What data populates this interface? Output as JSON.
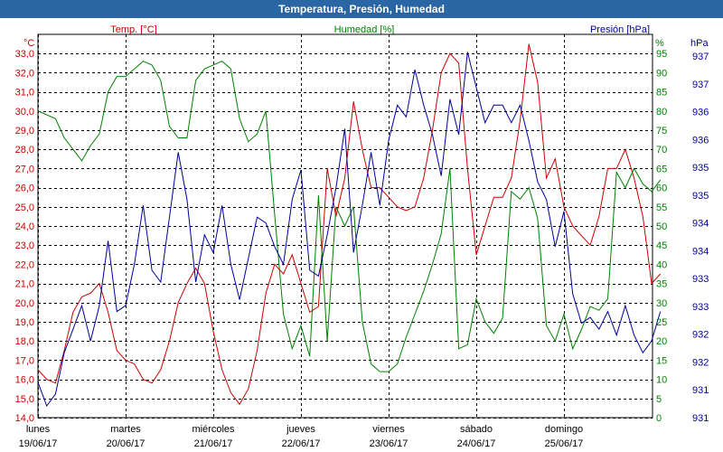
{
  "window": {
    "title": "Temperatura, Presión, Humedad"
  },
  "colors": {
    "temp": "#cc0000",
    "hum": "#008000",
    "pres": "#000099",
    "title_bg": "#2a66a4"
  },
  "chart_data": {
    "type": "line",
    "title": "Temperatura, Presión, Humedad",
    "axes": {
      "temp": {
        "label": "Temp. [°C]",
        "unit": "°C",
        "ylim": [
          14.0,
          34.0
        ],
        "ticks": [
          "14,0",
          "15,0",
          "16,0",
          "17,0",
          "18,0",
          "19,0",
          "20,0",
          "21,0",
          "22,0",
          "23,0",
          "24,0",
          "25,0",
          "26,0",
          "27,0",
          "28,0",
          "29,0",
          "30,0",
          "31,0",
          "32,0",
          "33,0"
        ]
      },
      "hum": {
        "label": "Humedad [%]",
        "unit": "%",
        "ylim": [
          0,
          100
        ],
        "ticks": [
          "0",
          "5",
          "10",
          "15",
          "20",
          "25",
          "30",
          "35",
          "40",
          "45",
          "50",
          "55",
          "60",
          "65",
          "70",
          "75",
          "80",
          "85",
          "90",
          "95"
        ]
      },
      "pres": {
        "label": "Presión [hPa]",
        "unit": "hPa",
        "ticks": [
          "931",
          "931",
          "932",
          "932",
          "933",
          "933",
          "934",
          "934",
          "935",
          "935",
          "936",
          "936",
          "937",
          "937"
        ]
      }
    },
    "x": {
      "days": [
        {
          "name": "lunes",
          "date": "19/06/17"
        },
        {
          "name": "martes",
          "date": "20/06/17"
        },
        {
          "name": "miércoles",
          "date": "21/06/17"
        },
        {
          "name": "jueves",
          "date": "22/06/17"
        },
        {
          "name": "viernes",
          "date": "23/06/17"
        },
        {
          "name": "sábado",
          "date": "24/06/17"
        },
        {
          "name": "domingo",
          "date": "25/06/17"
        }
      ]
    },
    "grid": true,
    "series": [
      {
        "name": "Temp. [°C]",
        "axis": "temp",
        "color": "#cc0000",
        "x": [
          0,
          0.1,
          0.2,
          0.3,
          0.4,
          0.5,
          0.6,
          0.7,
          0.8,
          0.9,
          1.0,
          1.1,
          1.2,
          1.3,
          1.4,
          1.5,
          1.6,
          1.7,
          1.8,
          1.9,
          2.0,
          2.1,
          2.2,
          2.3,
          2.4,
          2.5,
          2.6,
          2.7,
          2.8,
          2.9,
          3.0,
          3.1,
          3.2,
          3.3,
          3.4,
          3.5,
          3.6,
          3.7,
          3.8,
          3.9,
          4.0,
          4.1,
          4.2,
          4.3,
          4.4,
          4.5,
          4.6,
          4.7,
          4.8,
          4.9,
          5.0,
          5.1,
          5.2,
          5.3,
          5.4,
          5.5,
          5.6,
          5.7,
          5.8,
          5.9,
          6.0,
          6.1,
          6.2,
          6.3,
          6.4,
          6.5,
          6.6,
          6.7,
          6.8,
          6.9,
          7.0,
          7.1
        ],
        "values": [
          16.5,
          16.0,
          15.8,
          17.5,
          19.5,
          20.3,
          20.5,
          21.0,
          19.5,
          17.5,
          17.0,
          16.8,
          16.0,
          15.8,
          16.5,
          18.0,
          20.0,
          21.0,
          21.8,
          21.0,
          18.5,
          16.5,
          15.3,
          14.7,
          15.5,
          17.5,
          20.5,
          22.0,
          21.5,
          22.5,
          21.0,
          19.5,
          19.8,
          27.0,
          24.5,
          26.5,
          30.5,
          28.0,
          26.0,
          26.0,
          25.5,
          25.0,
          24.8,
          25.0,
          26.5,
          29.0,
          32.0,
          33.0,
          32.5,
          27.0,
          22.5,
          24.0,
          25.5,
          25.5,
          26.5,
          29.5,
          33.5,
          31.5,
          26.5,
          27.5,
          25.0,
          24.0,
          23.5,
          23.0,
          24.5,
          27.0,
          27.0,
          28.0,
          26.5,
          24.5,
          21.0,
          21.5
        ]
      },
      {
        "name": "Humedad [%]",
        "axis": "hum",
        "color": "#008000",
        "x": [
          0,
          0.1,
          0.2,
          0.3,
          0.4,
          0.5,
          0.6,
          0.7,
          0.8,
          0.9,
          1.0,
          1.1,
          1.2,
          1.3,
          1.4,
          1.5,
          1.6,
          1.7,
          1.8,
          1.9,
          2.0,
          2.1,
          2.2,
          2.3,
          2.4,
          2.5,
          2.6,
          2.7,
          2.8,
          2.9,
          3.0,
          3.1,
          3.2,
          3.3,
          3.4,
          3.5,
          3.6,
          3.7,
          3.8,
          3.9,
          4.0,
          4.1,
          4.2,
          4.3,
          4.4,
          4.5,
          4.6,
          4.7,
          4.8,
          4.9,
          5.0,
          5.1,
          5.2,
          5.3,
          5.4,
          5.5,
          5.6,
          5.7,
          5.8,
          5.9,
          6.0,
          6.1,
          6.2,
          6.3,
          6.4,
          6.5,
          6.6,
          6.7,
          6.8,
          6.9,
          7.0,
          7.1
        ],
        "values": [
          80,
          79,
          78,
          73,
          70,
          67,
          71,
          74,
          85,
          89,
          89,
          91,
          93,
          92,
          88,
          76,
          73,
          73,
          88,
          91,
          92,
          93,
          91,
          78,
          72,
          74,
          80,
          53,
          27,
          18,
          24,
          16,
          58,
          20,
          55,
          50,
          55,
          25,
          14,
          12,
          12,
          14,
          21,
          27,
          33,
          40,
          48,
          65,
          18,
          19,
          31,
          25,
          22,
          26,
          59,
          57,
          60,
          52,
          24,
          20,
          27,
          18,
          23,
          29,
          28,
          31,
          64,
          60,
          65,
          61,
          59,
          62
        ]
      },
      {
        "name": "Presión [hPa]",
        "axis": "pres",
        "color": "#000099",
        "x": [
          0,
          0.1,
          0.2,
          0.3,
          0.4,
          0.5,
          0.6,
          0.7,
          0.8,
          0.9,
          1.0,
          1.1,
          1.2,
          1.3,
          1.4,
          1.5,
          1.6,
          1.7,
          1.8,
          1.9,
          2.0,
          2.1,
          2.2,
          2.3,
          2.4,
          2.5,
          2.6,
          2.7,
          2.8,
          2.9,
          3.0,
          3.1,
          3.2,
          3.3,
          3.4,
          3.5,
          3.6,
          3.7,
          3.8,
          3.9,
          4.0,
          4.1,
          4.2,
          4.3,
          4.4,
          4.5,
          4.6,
          4.7,
          4.8,
          4.9,
          5.0,
          5.1,
          5.2,
          5.3,
          5.4,
          5.5,
          5.6,
          5.7,
          5.8,
          5.9,
          6.0,
          6.1,
          6.2,
          6.3,
          6.4,
          6.5,
          6.6,
          6.7,
          6.8,
          6.9,
          7.0,
          7.1
        ],
        "values": [
          931.5,
          931.1,
          931.3,
          932.0,
          932.4,
          932.8,
          932.2,
          932.8,
          933.9,
          932.7,
          932.8,
          933.5,
          934.5,
          933.4,
          933.2,
          934.3,
          935.4,
          934.6,
          933.2,
          934.0,
          933.7,
          934.5,
          933.5,
          932.9,
          933.6,
          934.3,
          934.2,
          933.8,
          933.5,
          934.6,
          935.1,
          933.4,
          933.3,
          934.0,
          934.8,
          935.8,
          933.7,
          934.5,
          935.4,
          934.5,
          935.6,
          936.2,
          936.0,
          936.8,
          936.2,
          935.7,
          935.0,
          936.3,
          935.7,
          937.1,
          936.5,
          935.9,
          936.2,
          936.2,
          935.9,
          936.2,
          935.6,
          934.9,
          934.6,
          933.8,
          934.4,
          933.0,
          932.5,
          932.6,
          932.4,
          932.7,
          932.3,
          932.8,
          932.3,
          932.0,
          932.2,
          932.7
        ]
      }
    ]
  }
}
